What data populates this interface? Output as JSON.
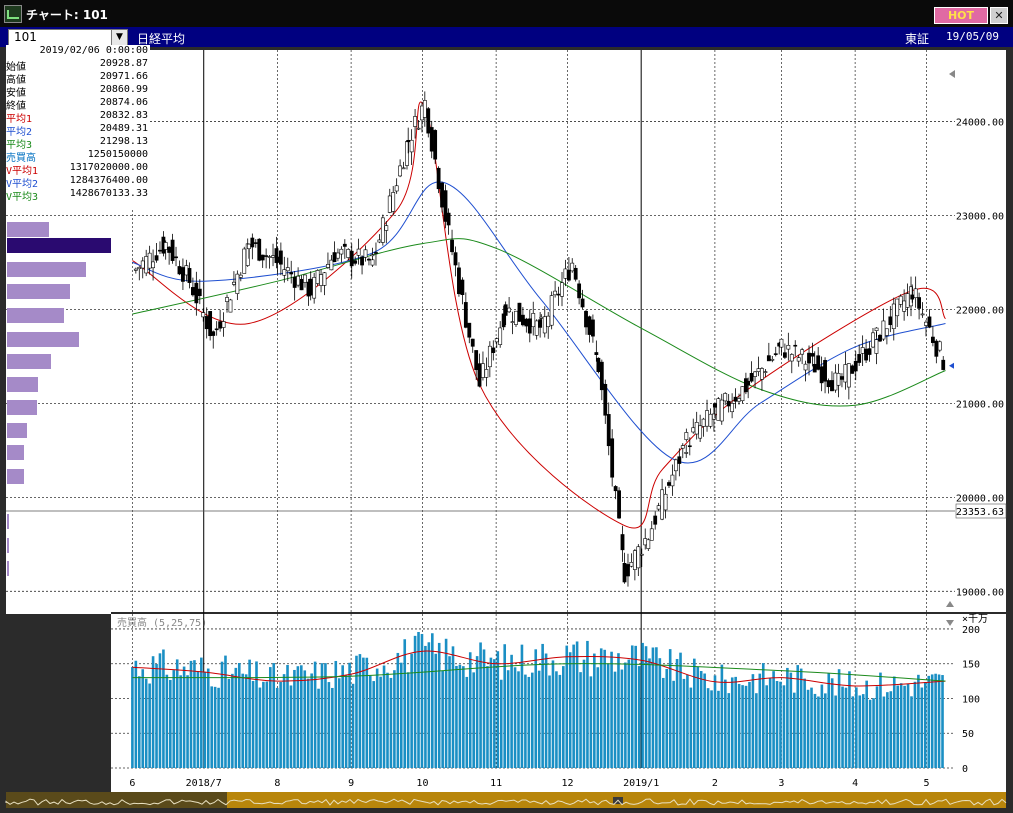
{
  "window": {
    "title": "チャート: 101",
    "hot_label": "HOT",
    "close_label": "✕"
  },
  "toolbar": {
    "symbol": "101",
    "index_name": "日経平均",
    "exchange": "東証",
    "date": "19/05/09"
  },
  "info_panel": {
    "date": "2019/02/06 0:00:00",
    "rows": [
      {
        "label": "始値",
        "value": "20928.87",
        "color": "#000000"
      },
      {
        "label": "高値",
        "value": "20971.66",
        "color": "#000000"
      },
      {
        "label": "安値",
        "value": "20860.99",
        "color": "#000000"
      },
      {
        "label": "終値",
        "value": "20874.06",
        "color": "#000000"
      },
      {
        "label": "平均1",
        "value": "20832.83",
        "color": "#cc0000"
      },
      {
        "label": "平均2",
        "value": "20489.31",
        "color": "#1f4fd0"
      },
      {
        "label": "平均3",
        "value": "21298.13",
        "color": "#1b8a1b"
      },
      {
        "label": "売買高",
        "value": "1250150000",
        "color": "#0070c0"
      },
      {
        "label": "V平均1",
        "value": "1317020000.00",
        "color": "#cc0000"
      },
      {
        "label": "V平均2",
        "value": "1284376400.00",
        "color": "#1f4fd0"
      },
      {
        "label": "V平均3",
        "value": "1428670133.33",
        "color": "#1b8a1b"
      }
    ]
  },
  "colors": {
    "up": "#ffffff",
    "down": "#000000",
    "ma1": "#cc0000",
    "ma2": "#1f4fd0",
    "ma3": "#1b8a1b",
    "volume": "#1a8fc4",
    "volume_profile": "#a58ac8",
    "volume_profile_active": "#2a0a70"
  },
  "chart_data": [
    {
      "type": "candlestick",
      "title": "日経平均",
      "y_ticks": [
        "24000.00",
        "23000.00",
        "22000.00",
        "21000.00",
        "20000.00",
        "19000.00"
      ],
      "ylim": [
        18780,
        24760
      ],
      "x_tick_labels": [
        "6",
        "2018/7",
        "8",
        "9",
        "10",
        "11",
        "12",
        "2019/1",
        "2",
        "3",
        "4",
        "5"
      ],
      "cursor_value": "23353.63",
      "series": [
        {
          "name": "平均1",
          "x": [
            "2018-06-01",
            "2018-07-20",
            "2018-09-20",
            "2018-10-02",
            "2018-10-25",
            "2018-12-25",
            "2019-01-10",
            "2019-02-15",
            "2019-04-25",
            "2019-05-09"
          ],
          "y": [
            22520,
            21850,
            23050,
            24150,
            21200,
            19700,
            20300,
            21150,
            22200,
            21900
          ]
        },
        {
          "name": "平均2",
          "x": [
            "2018-06-01",
            "2018-07-01",
            "2018-09-10",
            "2018-10-10",
            "2018-11-20",
            "2019-01-15",
            "2019-02-20",
            "2019-04-01",
            "2019-05-09"
          ],
          "y": [
            22500,
            22300,
            22600,
            23350,
            22100,
            20400,
            21000,
            21600,
            21850
          ]
        },
        {
          "name": "平均3",
          "x": [
            "2018-06-01",
            "2018-08-01",
            "2018-10-01",
            "2018-11-01",
            "2019-01-01",
            "2019-02-20",
            "2019-04-01",
            "2019-05-09"
          ],
          "y": [
            21950,
            22300,
            22700,
            22650,
            21800,
            21150,
            20980,
            21350
          ]
        }
      ],
      "ohlc": [
        {
          "x": "2018-06-01",
          "close": 22400
        },
        {
          "x": "2018-06-15",
          "close": 22700
        },
        {
          "x": "2018-06-25",
          "close": 22300
        },
        {
          "x": "2018-07-05",
          "close": 21700
        },
        {
          "x": "2018-07-20",
          "close": 22700
        },
        {
          "x": "2018-08-01",
          "close": 22500
        },
        {
          "x": "2018-08-15",
          "close": 22200
        },
        {
          "x": "2018-08-25",
          "close": 22600
        },
        {
          "x": "2018-09-10",
          "close": 22500
        },
        {
          "x": "2018-09-25",
          "close": 23800
        },
        {
          "x": "2018-10-02",
          "close": 24200
        },
        {
          "x": "2018-10-12",
          "close": 22800
        },
        {
          "x": "2018-10-25",
          "close": 21200
        },
        {
          "x": "2018-11-05",
          "close": 22000
        },
        {
          "x": "2018-11-20",
          "close": 21800
        },
        {
          "x": "2018-12-03",
          "close": 22500
        },
        {
          "x": "2018-12-14",
          "close": 21400
        },
        {
          "x": "2018-12-25",
          "close": 19200
        },
        {
          "x": "2019-01-04",
          "close": 19600
        },
        {
          "x": "2019-01-20",
          "close": 20600
        },
        {
          "x": "2019-02-01",
          "close": 20900
        },
        {
          "x": "2019-02-15",
          "close": 21200
        },
        {
          "x": "2019-03-01",
          "close": 21600
        },
        {
          "x": "2019-03-15",
          "close": 21400
        },
        {
          "x": "2019-03-25",
          "close": 21200
        },
        {
          "x": "2019-04-10",
          "close": 21700
        },
        {
          "x": "2019-04-25",
          "close": 22200
        },
        {
          "x": "2019-05-09",
          "close": 21400
        }
      ]
    },
    {
      "type": "bar",
      "title": "売買高 (5,25,75)",
      "y_unit": "×千万",
      "y_ticks": [
        "200",
        "150",
        "100",
        "50",
        "0"
      ],
      "ylim": [
        0,
        210
      ],
      "series": [
        {
          "name": "売買高",
          "x": [
            "2018-06-01",
            "2018-07-01",
            "2018-08-01",
            "2018-09-01",
            "2018-10-01",
            "2018-11-01",
            "2018-12-01",
            "2019-01-01",
            "2019-02-01",
            "2019-03-01",
            "2019-04-01",
            "2019-05-09"
          ],
          "y": [
            148,
            142,
            128,
            140,
            170,
            152,
            162,
            158,
            126,
            132,
            118,
            124
          ]
        },
        {
          "name": "平均1",
          "x": [
            "2018-06-01",
            "2018-07-01",
            "2018-08-01",
            "2018-09-01",
            "2018-10-01",
            "2018-11-01",
            "2018-12-01",
            "2019-01-01",
            "2019-02-01",
            "2019-03-01",
            "2019-04-01",
            "2019-05-09"
          ],
          "y": [
            145,
            138,
            125,
            135,
            168,
            150,
            160,
            155,
            124,
            130,
            118,
            125
          ]
        },
        {
          "name": "平均3",
          "x": [
            "2018-06-01",
            "2018-09-01",
            "2018-12-01",
            "2019-03-01",
            "2019-05-09"
          ],
          "y": [
            130,
            132,
            150,
            140,
            125
          ]
        }
      ]
    }
  ]
}
